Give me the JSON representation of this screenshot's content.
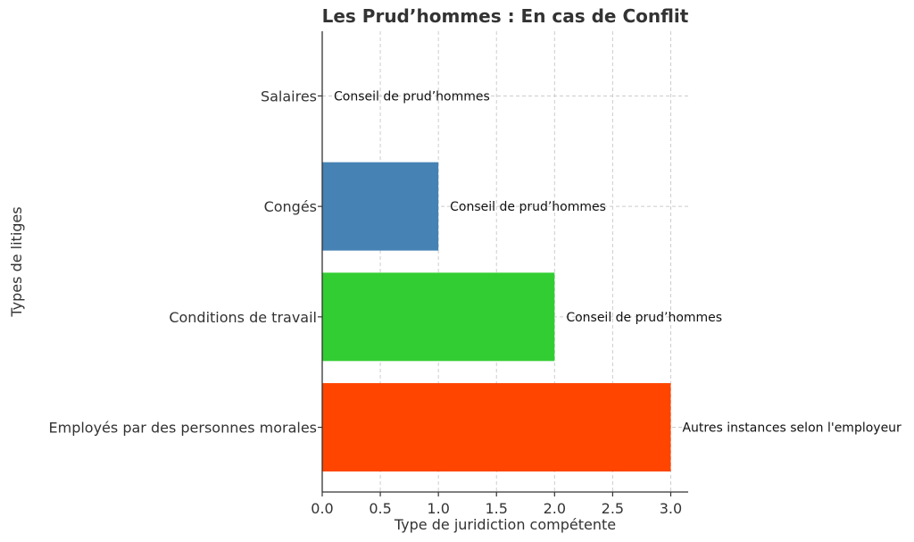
{
  "chart_data": {
    "type": "bar",
    "orientation": "horizontal",
    "title": "Les Prud’hommes : En cas de Conflit",
    "xlabel": "Type de juridiction compétente",
    "ylabel": "Types de litiges",
    "categories": [
      "Salaires",
      "Congés",
      "Conditions de travail",
      "Employés par des personnes morales"
    ],
    "values": [
      0,
      1,
      2,
      3
    ],
    "bar_labels": [
      "Conseil de prud’hommes",
      "Conseil de prud’hommes",
      "Conseil de prud’hommes",
      "Autres instances selon l'employeur"
    ],
    "colors": [
      "#2e8b57",
      "#4682b4",
      "#32cd32",
      "#ff4500"
    ],
    "xlim": [
      0,
      3.15
    ],
    "xticks": [
      0.0,
      0.5,
      1.0,
      1.5,
      2.0,
      2.5,
      3.0
    ],
    "xtick_labels": [
      "0.0",
      "0.5",
      "1.0",
      "1.5",
      "2.0",
      "2.5",
      "3.0"
    ],
    "grid": true
  }
}
